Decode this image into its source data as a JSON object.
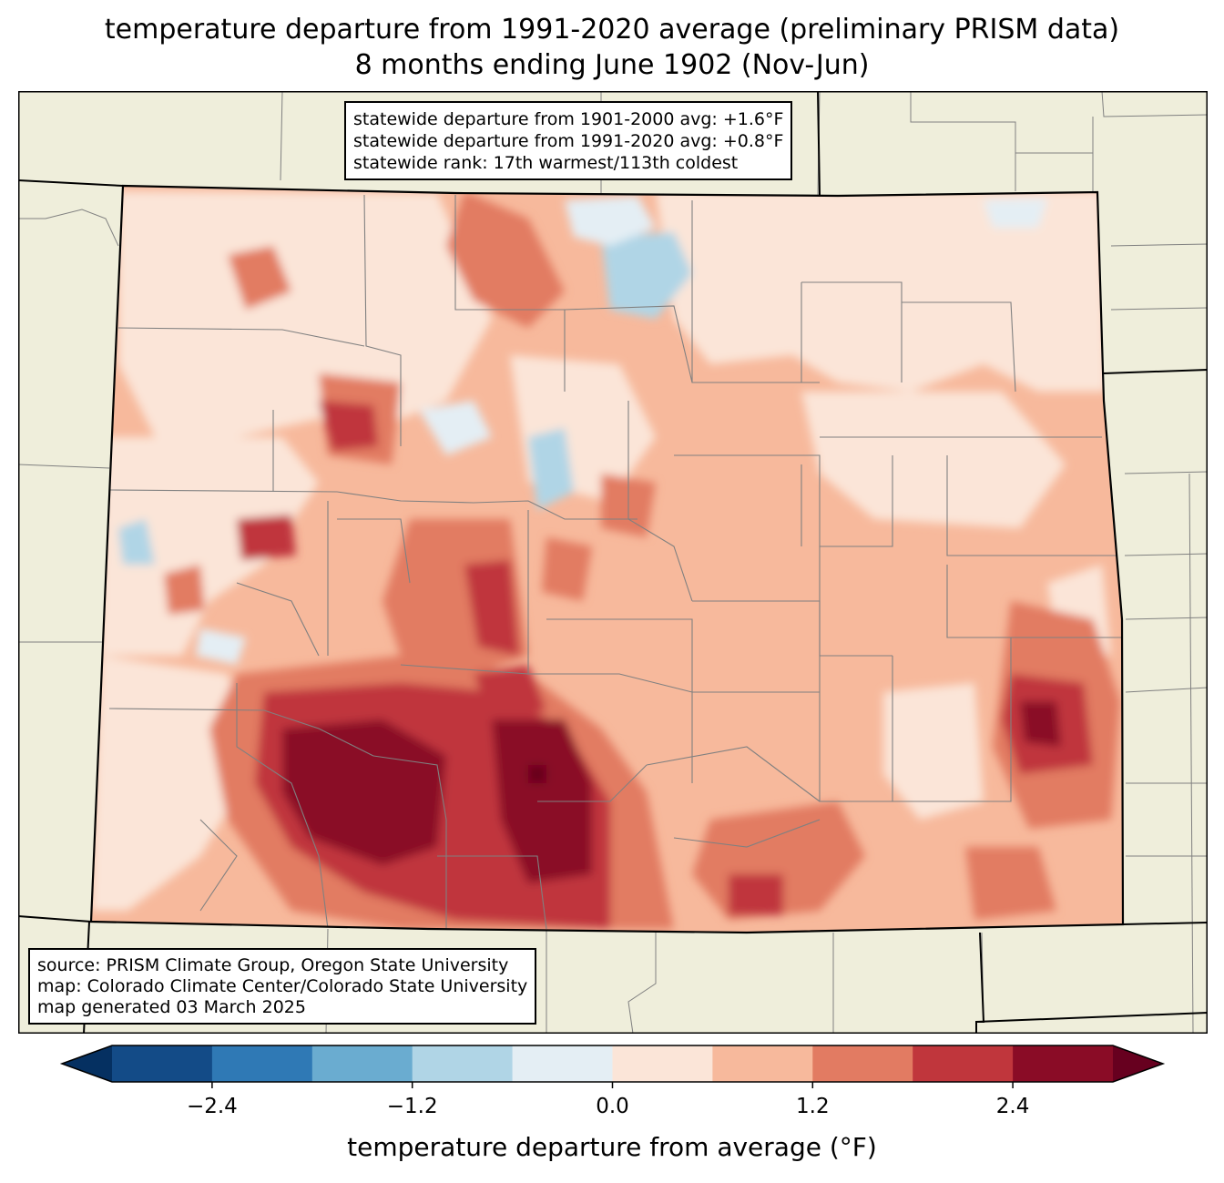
{
  "title": {
    "line1": "temperature departure from 1991-2020 average (preliminary PRISM data)",
    "line2": "8 months ending June 1902 (Nov-Jun)"
  },
  "stats_box": {
    "line1": "statewide departure from 1901-2000 avg: +1.6°F",
    "line2": "statewide departure from 1991-2020 avg: +0.8°F",
    "line3": "statewide rank: 17th warmest/113th coldest"
  },
  "source_box": {
    "line1": "source: PRISM Climate Group, Oregon State University",
    "line2": "map: Colorado Climate Center/Colorado State University",
    "line3": "map generated 03 March 2025"
  },
  "colorbar": {
    "label": "temperature departure from average (°F)",
    "ticks": [
      "−2.4",
      "−1.2",
      "0.0",
      "1.2",
      "2.4"
    ],
    "tick_values": [
      -2.4,
      -1.2,
      0.0,
      1.2,
      2.4
    ],
    "levels": [
      -3.0,
      -2.4,
      -1.8,
      -1.2,
      -0.6,
      0.0,
      0.6,
      1.2,
      1.8,
      2.4,
      3.0
    ],
    "colors": [
      "#053061",
      "#134b87",
      "#2f79b5",
      "#6aacd0",
      "#b0d5e6",
      "#e4eef4",
      "#fbe5d8",
      "#f7b99c",
      "#e27b62",
      "#c0363c",
      "#8a0c26",
      "#67001f"
    ]
  },
  "map": {
    "land_color": "#efeedb",
    "state_border_color": "#000000",
    "county_border_color": "#808080"
  }
}
